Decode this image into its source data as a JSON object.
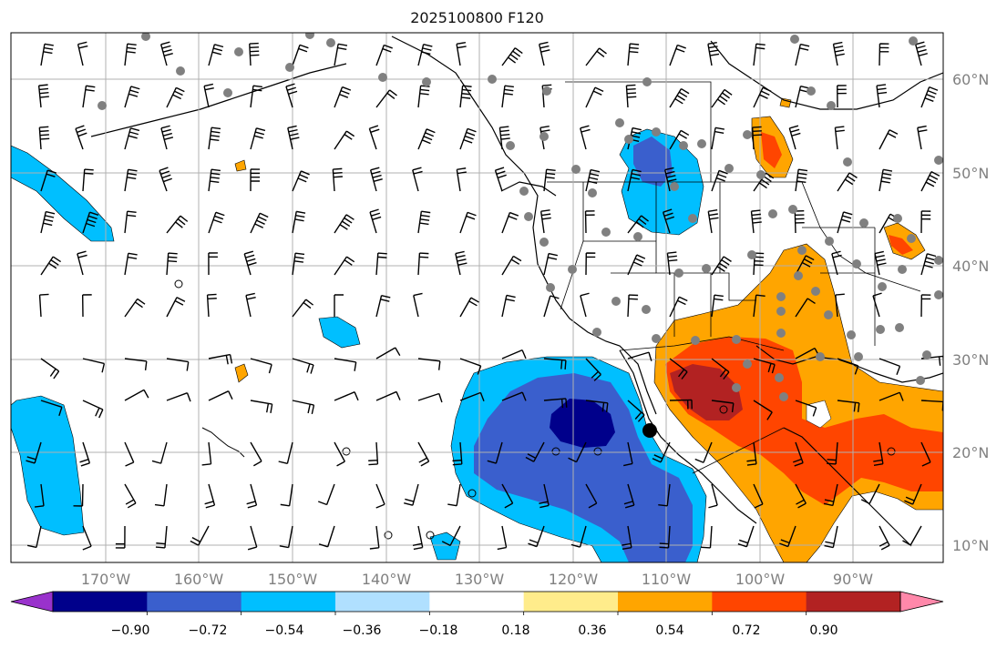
{
  "title": "2025100800 F120",
  "map": {
    "lat_ticks": [
      "60°N",
      "50°N",
      "40°N",
      "30°N",
      "20°N",
      "10°N"
    ],
    "lon_ticks": [
      "170°W",
      "160°W",
      "150°W",
      "140°W",
      "130°W",
      "120°W",
      "110°W",
      "100°W",
      "90°W"
    ],
    "grid": true,
    "features": [
      "coastlines",
      "country-borders",
      "state-borders",
      "wind-barbs",
      "station-dots",
      "filled-contours"
    ]
  },
  "colorbar": {
    "orientation": "horizontal",
    "extend": "both",
    "tick_labels": [
      "−0.90",
      "−0.72",
      "−0.54",
      "−0.36",
      "−0.18",
      "0.18",
      "0.36",
      "0.54",
      "0.72",
      "0.90"
    ],
    "colors": [
      "#9932cc",
      "#00008b",
      "#3a5fcd",
      "#00bfff",
      "#b0e0ff",
      "#ffffff",
      "#ffec8b",
      "#ffa500",
      "#ff4500",
      "#b22222",
      "#ff88aa"
    ]
  },
  "palette": {
    "blue_deep": "#00008b",
    "blue_mid": "#3a5fcd",
    "blue_light": "#00bfff",
    "orange": "#ffa500",
    "red_orange": "#ff4500",
    "dark_red": "#b22222",
    "station_dot": "#808080",
    "grid": "#b0b0b0"
  }
}
